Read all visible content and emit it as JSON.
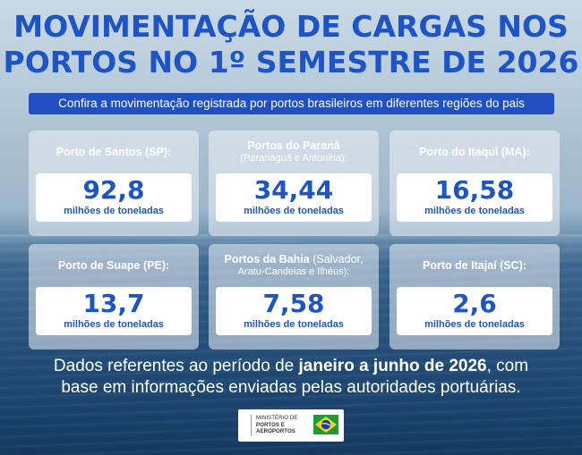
{
  "title_line1": "MOVIMENTAÇÃO DE CARGAS NOS",
  "title_line2": "PORTOS NO 1º SEMESTRE DE 2026",
  "subtitle": "Confira a movimentação registrada por portos brasileiros em diferentes regiões do pais",
  "cards": [
    {
      "name": "Porto de Santos (SP):",
      "sub": "",
      "value": "92,8",
      "unit": "milhões de toneladas"
    },
    {
      "name": "Portos do Paraná",
      "sub": "(Paranaguá e Antonina):",
      "value": "34,44",
      "unit": "milhões de toneladas"
    },
    {
      "name": "Porto do Itaqui (MA):",
      "sub": "",
      "value": "16,58",
      "unit": "milhões de toneladas"
    },
    {
      "name": "Porto de Suape (PE):",
      "sub": "",
      "value": "13,7",
      "unit": "milhões de toneladas"
    },
    {
      "name": "Portos da Bahia",
      "name_sub": "(Salvador,",
      "sub": "Aratu-Candeias e Ilhéus):",
      "value": "7,58",
      "unit": "milhões de toneladas"
    },
    {
      "name": "Porto de Itajaí (SC):",
      "sub": "",
      "value": "2,6",
      "unit": "milhões de toneladas"
    }
  ],
  "footer": {
    "prefix": "Dados referentes ao período de ",
    "bold": "janeiro a junho de 2026",
    "suffix": ", com",
    "line2": "base em informações enviadas pelas autoridades portuárias."
  },
  "logo": {
    "line1": "MINISTÉRIO DE",
    "line2": "PORTOS E",
    "line3": "AEROPORTOS"
  },
  "colors": {
    "accent": "#1d55c8",
    "bar": "#1f4fc1"
  }
}
